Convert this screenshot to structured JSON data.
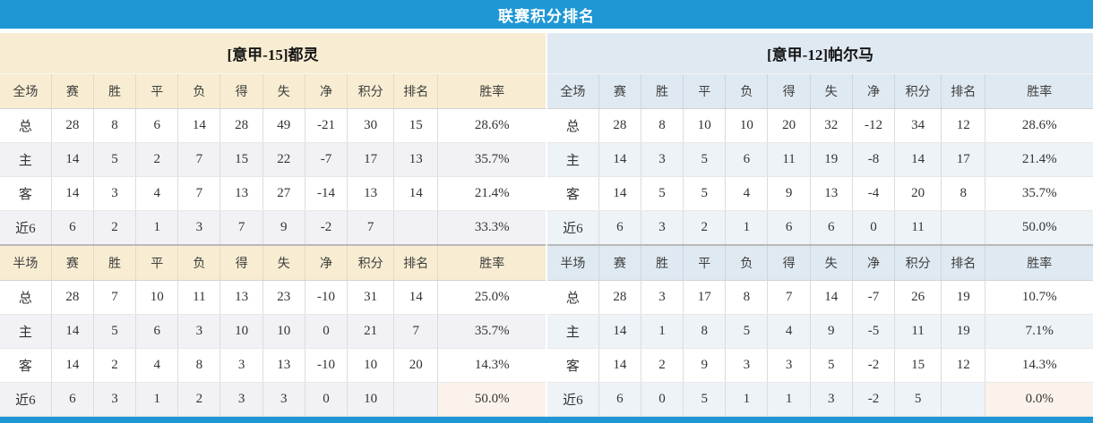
{
  "page_title": "联赛积分排名",
  "colors": {
    "accent": "#1F97D4",
    "points_red": "#E23C28",
    "rank_blue": "#4585C4",
    "home_label_red": "#C00000",
    "away_label_blue": "#0000C8",
    "left_header_bg": "#F8EDD2",
    "right_header_bg": "#DFE9F1"
  },
  "teams": [
    {
      "title": "[意甲-15]都灵",
      "theme": "cream",
      "sections": [
        {
          "scope": "全场",
          "columns": [
            "全场",
            "赛",
            "胜",
            "平",
            "负",
            "得",
            "失",
            "净",
            "积分",
            "排名",
            "胜率"
          ],
          "rows": [
            {
              "label": "总",
              "type": "total",
              "cells": [
                "28",
                "8",
                "6",
                "14",
                "28",
                "49",
                "-21"
              ],
              "points": "30",
              "rank": "15",
              "rate": "28.6%"
            },
            {
              "label": "主",
              "type": "home",
              "cells": [
                "14",
                "5",
                "2",
                "7",
                "15",
                "22",
                "-7"
              ],
              "points": "17",
              "rank": "13",
              "rate": "35.7%"
            },
            {
              "label": "客",
              "type": "away",
              "cells": [
                "14",
                "3",
                "4",
                "7",
                "13",
                "27",
                "-14"
              ],
              "points": "13",
              "rank": "14",
              "rate": "21.4%"
            },
            {
              "label": "近6",
              "type": "recent",
              "cells": [
                "6",
                "2",
                "1",
                "3",
                "7",
                "9",
                "-2"
              ],
              "points": "7",
              "rank": "",
              "rate": "33.3%"
            }
          ]
        },
        {
          "scope": "半场",
          "columns": [
            "半场",
            "赛",
            "胜",
            "平",
            "负",
            "得",
            "失",
            "净",
            "积分",
            "排名",
            "胜率"
          ],
          "rows": [
            {
              "label": "总",
              "type": "total",
              "cells": [
                "28",
                "7",
                "10",
                "11",
                "13",
                "23",
                "-10"
              ],
              "points": "31",
              "rank": "14",
              "rate": "25.0%"
            },
            {
              "label": "主",
              "type": "home",
              "cells": [
                "14",
                "5",
                "6",
                "3",
                "10",
                "10",
                "0"
              ],
              "points": "21",
              "rank": "7",
              "rate": "35.7%"
            },
            {
              "label": "客",
              "type": "away",
              "cells": [
                "14",
                "2",
                "4",
                "8",
                "3",
                "13",
                "-10"
              ],
              "points": "10",
              "rank": "20",
              "rate": "14.3%"
            },
            {
              "label": "近6",
              "type": "recent",
              "cells": [
                "6",
                "3",
                "1",
                "2",
                "3",
                "3",
                "0"
              ],
              "points": "10",
              "rank": "",
              "rate": "50.0%"
            }
          ]
        }
      ]
    },
    {
      "title": "[意甲-12]帕尔马",
      "theme": "blue",
      "sections": [
        {
          "scope": "全场",
          "columns": [
            "全场",
            "赛",
            "胜",
            "平",
            "负",
            "得",
            "失",
            "净",
            "积分",
            "排名",
            "胜率"
          ],
          "rows": [
            {
              "label": "总",
              "type": "total",
              "cells": [
                "28",
                "8",
                "10",
                "10",
                "20",
                "32",
                "-12"
              ],
              "points": "34",
              "rank": "12",
              "rate": "28.6%"
            },
            {
              "label": "主",
              "type": "home",
              "cells": [
                "14",
                "3",
                "5",
                "6",
                "11",
                "19",
                "-8"
              ],
              "points": "14",
              "rank": "17",
              "rate": "21.4%"
            },
            {
              "label": "客",
              "type": "away",
              "cells": [
                "14",
                "5",
                "5",
                "4",
                "9",
                "13",
                "-4"
              ],
              "points": "20",
              "rank": "8",
              "rate": "35.7%"
            },
            {
              "label": "近6",
              "type": "recent",
              "cells": [
                "6",
                "3",
                "2",
                "1",
                "6",
                "6",
                "0"
              ],
              "points": "11",
              "rank": "",
              "rate": "50.0%"
            }
          ]
        },
        {
          "scope": "半场",
          "columns": [
            "半场",
            "赛",
            "胜",
            "平",
            "负",
            "得",
            "失",
            "净",
            "积分",
            "排名",
            "胜率"
          ],
          "rows": [
            {
              "label": "总",
              "type": "total",
              "cells": [
                "28",
                "3",
                "17",
                "8",
                "7",
                "14",
                "-7"
              ],
              "points": "26",
              "rank": "19",
              "rate": "10.7%"
            },
            {
              "label": "主",
              "type": "home",
              "cells": [
                "14",
                "1",
                "8",
                "5",
                "4",
                "9",
                "-5"
              ],
              "points": "11",
              "rank": "19",
              "rate": "7.1%"
            },
            {
              "label": "客",
              "type": "away",
              "cells": [
                "14",
                "2",
                "9",
                "3",
                "3",
                "5",
                "-2"
              ],
              "points": "15",
              "rank": "12",
              "rate": "14.3%"
            },
            {
              "label": "近6",
              "type": "recent",
              "cells": [
                "6",
                "0",
                "5",
                "1",
                "1",
                "3",
                "-2"
              ],
              "points": "5",
              "rank": "",
              "rate": "0.0%"
            }
          ]
        }
      ]
    }
  ],
  "layout": {
    "column_widths": [
      "9.4%",
      "7.75%",
      "7.75%",
      "7.75%",
      "7.75%",
      "7.75%",
      "7.75%",
      "7.75%",
      "8.55%",
      "8.1%",
      "19.7%"
    ]
  }
}
